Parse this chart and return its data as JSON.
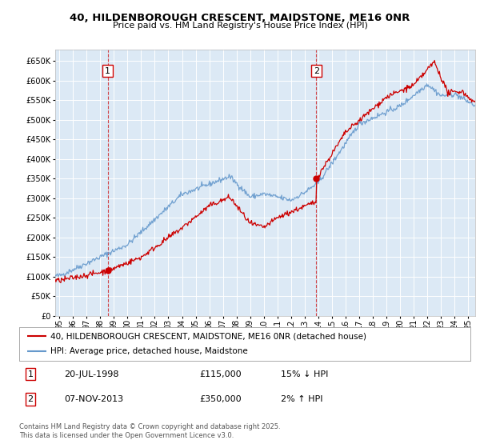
{
  "title": "40, HILDENBOROUGH CRESCENT, MAIDSTONE, ME16 0NR",
  "subtitle": "Price paid vs. HM Land Registry's House Price Index (HPI)",
  "fig_bg_color": "#ffffff",
  "plot_bg_color": "#dce9f5",
  "ylim": [
    0,
    680000
  ],
  "yticks": [
    0,
    50000,
    100000,
    150000,
    200000,
    250000,
    300000,
    350000,
    400000,
    450000,
    500000,
    550000,
    600000,
    650000
  ],
  "xlim_start": 1994.7,
  "xlim_end": 2025.5,
  "xticks": [
    1995,
    1996,
    1997,
    1998,
    1999,
    2000,
    2001,
    2002,
    2003,
    2004,
    2005,
    2006,
    2007,
    2008,
    2009,
    2010,
    2011,
    2012,
    2013,
    2014,
    2015,
    2016,
    2017,
    2018,
    2019,
    2020,
    2021,
    2022,
    2023,
    2024,
    2025
  ],
  "red_line_color": "#cc0000",
  "blue_line_color": "#6699cc",
  "marker1_x": 1998.55,
  "marker1_y": 115000,
  "marker2_x": 2013.85,
  "marker2_y": 350000,
  "vline_color": "#cc0000",
  "legend_label_red": "40, HILDENBOROUGH CRESCENT, MAIDSTONE, ME16 0NR (detached house)",
  "legend_label_blue": "HPI: Average price, detached house, Maidstone",
  "annotation1_box": "1",
  "annotation2_box": "2",
  "table_row1": [
    "1",
    "20-JUL-1998",
    "£115,000",
    "15% ↓ HPI"
  ],
  "table_row2": [
    "2",
    "07-NOV-2013",
    "£350,000",
    "2% ↑ HPI"
  ],
  "footer_text": "Contains HM Land Registry data © Crown copyright and database right 2025.\nThis data is licensed under the Open Government Licence v3.0."
}
